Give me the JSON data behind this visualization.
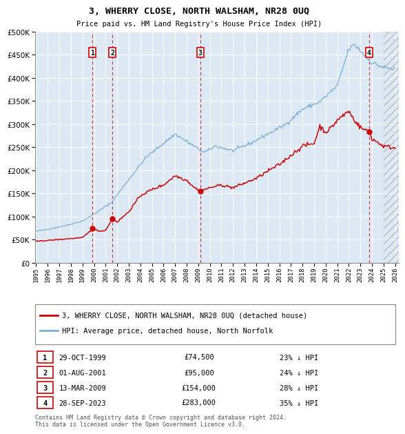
{
  "title": "3, WHERRY CLOSE, NORTH WALSHAM, NR28 0UQ",
  "subtitle": "Price paid vs. HM Land Registry's House Price Index (HPI)",
  "bg_color": "#dce9f5",
  "grid_color": "#ffffff",
  "ylim": [
    0,
    500000
  ],
  "yticks": [
    0,
    50000,
    100000,
    150000,
    200000,
    250000,
    300000,
    350000,
    400000,
    450000,
    500000
  ],
  "transactions": [
    {
      "num": 1,
      "date": "29-OCT-1999",
      "price": 74500,
      "price_str": "£74,500",
      "pct": "23%"
    },
    {
      "num": 2,
      "date": "01-AUG-2001",
      "price": 95000,
      "price_str": "£95,000",
      "pct": "24%"
    },
    {
      "num": 3,
      "date": "13-MAR-2009",
      "price": 154000,
      "price_str": "£154,000",
      "pct": "28%"
    },
    {
      "num": 4,
      "date": "28-SEP-2023",
      "price": 283000,
      "price_str": "£283,000",
      "pct": "35%"
    }
  ],
  "trans_x": {
    "1": 1999.833,
    "2": 2001.583,
    "3": 2009.167,
    "4": 2023.75
  },
  "hpi_line_color": "#7aadd4",
  "price_line_color": "#cc0000",
  "legend_label_price": "3, WHERRY CLOSE, NORTH WALSHAM, NR28 0UQ (detached house)",
  "legend_label_hpi": "HPI: Average price, detached house, North Norfolk",
  "footer": "Contains HM Land Registry data © Crown copyright and database right 2024.\nThis data is licensed under the Open Government Licence v3.0.",
  "x_start_year": 1995,
  "x_end_year": 2026
}
